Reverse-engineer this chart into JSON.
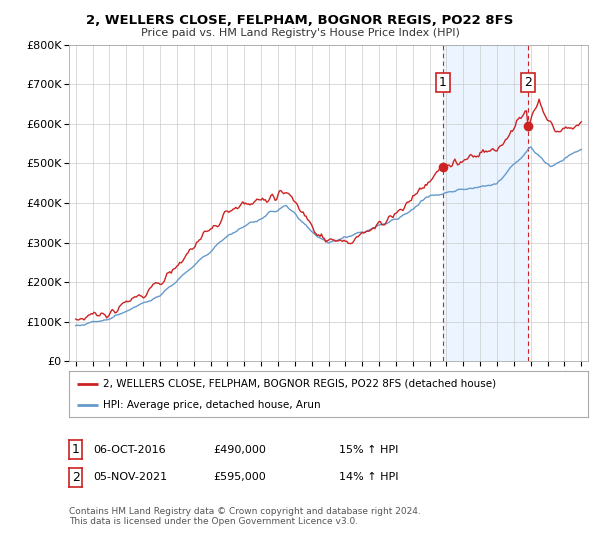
{
  "title": "2, WELLERS CLOSE, FELPHAM, BOGNOR REGIS, PO22 8FS",
  "subtitle": "Price paid vs. HM Land Registry's House Price Index (HPI)",
  "legend_line1": "2, WELLERS CLOSE, FELPHAM, BOGNOR REGIS, PO22 8FS (detached house)",
  "legend_line2": "HPI: Average price, detached house, Arun",
  "annotation1_label": "1",
  "annotation1_date": "06-OCT-2016",
  "annotation1_price": "£490,000",
  "annotation1_hpi": "15% ↑ HPI",
  "annotation2_label": "2",
  "annotation2_date": "05-NOV-2021",
  "annotation2_price": "£595,000",
  "annotation2_hpi": "14% ↑ HPI",
  "footer": "Contains HM Land Registry data © Crown copyright and database right 2024.\nThis data is licensed under the Open Government Licence v3.0.",
  "red_color": "#cc2222",
  "blue_color": "#6699cc",
  "fill_color": "#ddeeff",
  "vline_color": "#cc2222",
  "ylim_min": 0,
  "ylim_max": 800000,
  "yticks": [
    0,
    100000,
    200000,
    300000,
    400000,
    500000,
    600000,
    700000,
    800000
  ],
  "ytick_labels": [
    "£0",
    "£100K",
    "£200K",
    "£300K",
    "£400K",
    "£500K",
    "£600K",
    "£700K",
    "£800K"
  ],
  "xstart_year": 1995,
  "xend_year": 2025,
  "sale1_year": 2016.77,
  "sale1_value": 490000,
  "sale2_year": 2021.85,
  "sale2_value": 595000
}
